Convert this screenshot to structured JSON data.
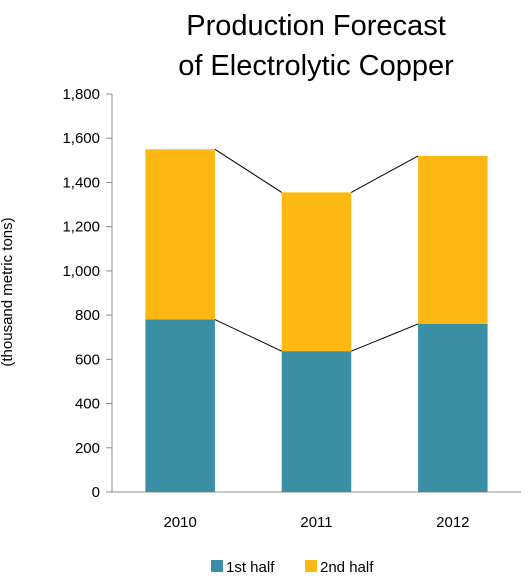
{
  "chart_data": {
    "type": "bar",
    "stacked": true,
    "title_lines": [
      "Production Forecast",
      "of Electrolytic Copper"
    ],
    "xlabel": "",
    "ylabel": "(thousand metric tons)",
    "categories": [
      "2010",
      "2011",
      "2012"
    ],
    "series": [
      {
        "name": "1st half",
        "values": [
          780,
          637,
          760
        ],
        "color": "#3A8FA5"
      },
      {
        "name": "2nd half",
        "values": [
          770,
          718,
          760
        ],
        "color": "#FDB813"
      }
    ],
    "ylim": [
      0,
      1800
    ],
    "yticks": [
      0,
      200,
      400,
      600,
      800,
      1000,
      1200,
      1400,
      1600,
      1800
    ],
    "ytick_labels": [
      "0",
      "200",
      "400",
      "600",
      "800",
      "1,000",
      "1,200",
      "1,400",
      "1,600",
      "1,800"
    ],
    "series_lines": true,
    "grid": false,
    "legend_position": "bottom"
  }
}
